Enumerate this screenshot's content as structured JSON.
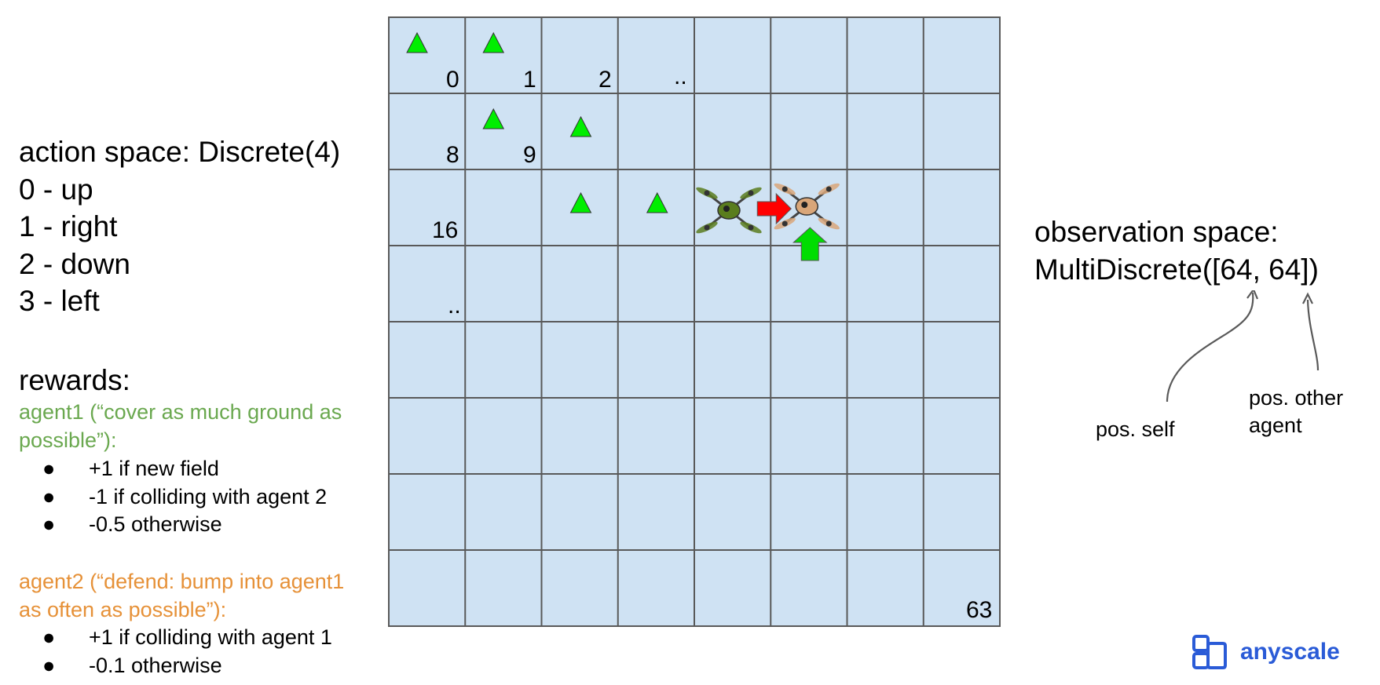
{
  "action_space": {
    "title": "action space: Discrete(4)",
    "actions": [
      "0 - up",
      "1 - right",
      "2 - down",
      "3 - left"
    ]
  },
  "rewards": {
    "title": "rewards:",
    "agent1": {
      "line1": "agent1 (“cover as much ground as",
      "line2": "possible”):",
      "color": "#6aa84f",
      "bullets": [
        "+1 if new field",
        "-1 if colliding with agent 2",
        "-0.5 otherwise"
      ]
    },
    "agent2": {
      "line1": "agent2 (“defend: bump into agent1",
      "line2": "as often as possible”):",
      "color": "#e69138",
      "bullets": [
        "+1 if colliding with agent 1",
        "-0.1 otherwise"
      ]
    },
    "bullet_char": "●"
  },
  "grid": {
    "rows": 8,
    "cols": 8,
    "cell_fill": "#cfe2f3",
    "line_color": "#595959",
    "labels": [
      "0",
      "1",
      "2",
      "..",
      "8",
      "9",
      "16",
      "..",
      "63"
    ],
    "visited_marker_color": "#00ee00",
    "visited_cells": [
      0,
      1,
      9,
      10,
      18,
      19
    ],
    "agent1": {
      "name": "agent1 drone",
      "cell": 20,
      "color": "#5a7d1e"
    },
    "agent2": {
      "name": "agent2 drone",
      "cell": 21,
      "color": "#d9a679"
    },
    "arrow_right_color": "#ff0000",
    "arrow_up_color": "#00dd00"
  },
  "observation_space": {
    "line1": "observation space:",
    "line2": "MultiDiscrete([64, 64])",
    "annotation_self": "pos. self",
    "annotation_other_line1": "pos. other",
    "annotation_other_line2": "agent"
  },
  "logo": {
    "text": "anyscale",
    "color": "#2a5bd7"
  }
}
